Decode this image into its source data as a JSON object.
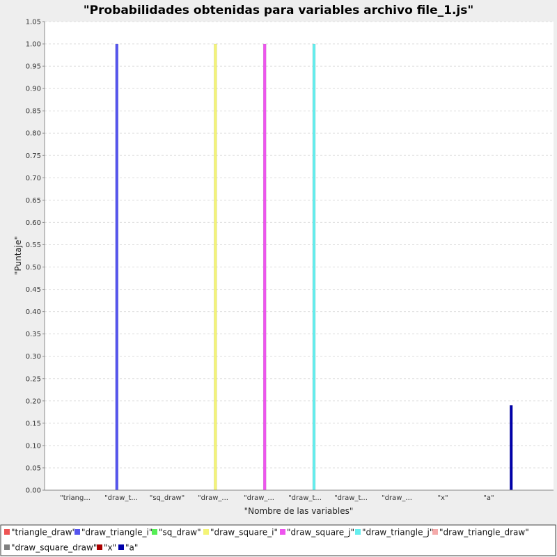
{
  "chart_data": {
    "type": "bar",
    "title": "\"Probabilidades obtenidas para variables archivo file_1.js\"",
    "xlabel": "\"Nombre de las variables\"",
    "ylabel": "\"Puntaje\"",
    "ylim": [
      0,
      1.05
    ],
    "y_ticks": [
      "0.00",
      "0.05",
      "0.10",
      "0.15",
      "0.20",
      "0.25",
      "0.30",
      "0.35",
      "0.40",
      "0.45",
      "0.50",
      "0.55",
      "0.60",
      "0.65",
      "0.70",
      "0.75",
      "0.80",
      "0.85",
      "0.90",
      "0.95",
      "1.00",
      "1.05"
    ],
    "grid": true,
    "legend_position": "bottom",
    "categories": [
      "\"triang...",
      "\"draw_t...",
      "\"sq_draw\"",
      "\"draw_...",
      "\"draw_...",
      "\"draw_t...",
      "\"draw_t...",
      "\"draw_...",
      "\"x\"",
      "\"a\""
    ],
    "series": [
      {
        "name": "\"triangle_draw\"",
        "color": "#ee5555",
        "values": [
          0,
          0,
          0,
          0,
          0,
          0,
          0,
          0,
          0,
          0
        ]
      },
      {
        "name": "\"draw_triangle_i\"",
        "color": "#5555ee",
        "values": [
          0,
          1.0,
          0,
          0,
          0,
          0,
          0,
          0,
          0,
          0
        ]
      },
      {
        "name": "\"sq_draw\"",
        "color": "#55ee55",
        "values": [
          0,
          0,
          0,
          0,
          0,
          0,
          0,
          0,
          0,
          0
        ]
      },
      {
        "name": "\"draw_square_i\"",
        "color": "#f4f477",
        "values": [
          0,
          0,
          0,
          1.0,
          0,
          0,
          0,
          0,
          0,
          0
        ]
      },
      {
        "name": "\"draw_square_j\"",
        "color": "#ee55ee",
        "values": [
          0,
          0,
          0,
          0,
          1.0,
          0,
          0,
          0,
          0,
          0
        ]
      },
      {
        "name": "\"draw_triangle_j\"",
        "color": "#66eeee",
        "values": [
          0,
          0,
          0,
          0,
          0,
          1.0,
          0,
          0,
          0,
          0
        ]
      },
      {
        "name": "\"draw_triangle_draw\"",
        "color": "#f4aaaa",
        "values": [
          0,
          0,
          0,
          0,
          0,
          0,
          0,
          0,
          0,
          0
        ]
      },
      {
        "name": "\"draw_square_draw\"",
        "color": "#808080",
        "values": [
          0,
          0,
          0,
          0,
          0,
          0,
          0,
          0,
          0,
          0
        ]
      },
      {
        "name": "\"x\"",
        "color": "#aa0000",
        "values": [
          0,
          0,
          0,
          0,
          0,
          0,
          0,
          0,
          0,
          0
        ]
      },
      {
        "name": "\"a\"",
        "color": "#0000aa",
        "values": [
          0,
          0,
          0,
          0,
          0,
          0,
          0,
          0,
          0,
          0.19
        ]
      }
    ]
  }
}
